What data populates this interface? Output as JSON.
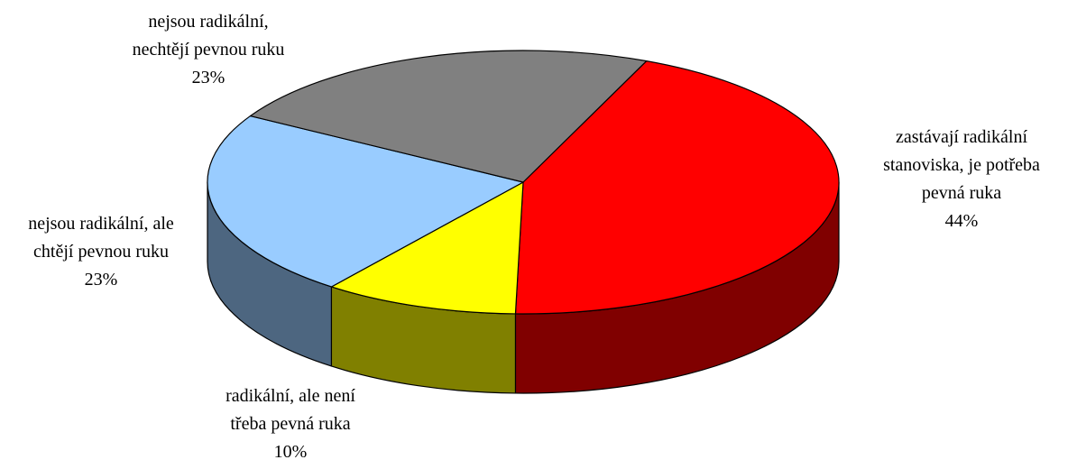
{
  "chart_data": {
    "type": "pie",
    "style": "3d",
    "title": "",
    "slices": [
      {
        "label_lines": [
          "zastávají radikální",
          "stanoviska, je potřeba",
          "pevná ruka"
        ],
        "value": 44,
        "pct_label": "44%",
        "color": "#ff0000",
        "side_color": "#800000"
      },
      {
        "label_lines": [
          "radikální, ale není",
          "třeba pevná ruka"
        ],
        "value": 10,
        "pct_label": "10%",
        "color": "#ffff00",
        "side_color": "#808000"
      },
      {
        "label_lines": [
          "nejsou radikální, ale",
          "chtějí pevnou ruku"
        ],
        "value": 23,
        "pct_label": "23%",
        "color": "#99ccff",
        "side_color": "#4d6680"
      },
      {
        "label_lines": [
          "nejsou radikální,",
          "nechtějí pevnou ruku"
        ],
        "value": 23,
        "pct_label": "23%",
        "color": "#808080",
        "side_color": "#404040"
      }
    ]
  }
}
